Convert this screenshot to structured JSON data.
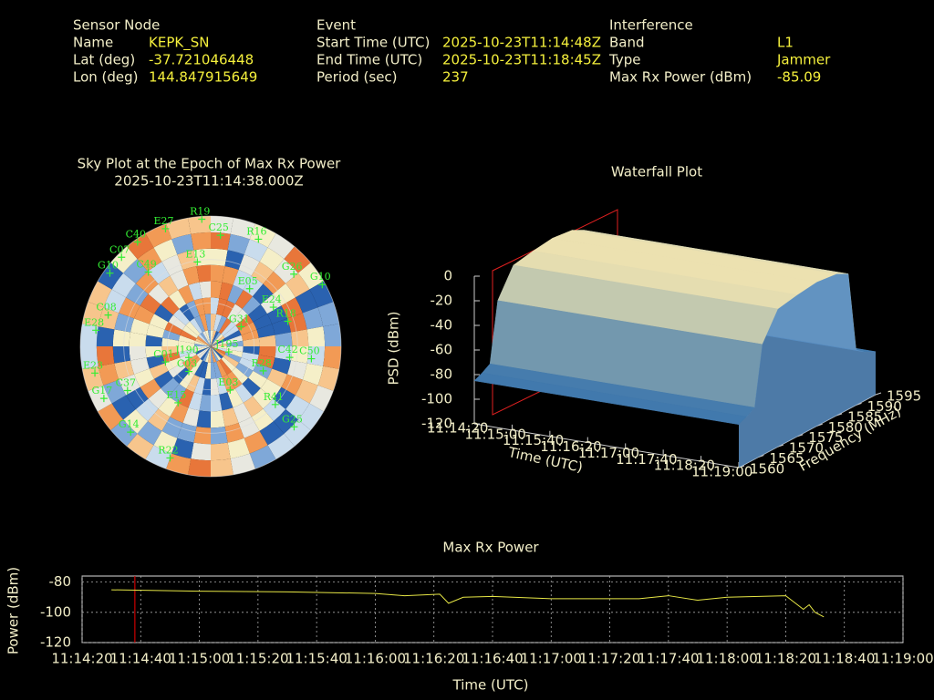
{
  "header": {
    "columns": [
      {
        "title": "Sensor Node",
        "rows": [
          [
            "Name",
            "KEPK_SN"
          ],
          [
            "Lat (deg)",
            "-37.721046448"
          ],
          [
            "Lon (deg)",
            "144.847915649"
          ]
        ]
      },
      {
        "title": "Event",
        "rows": [
          [
            "Start Time (UTC)",
            "2025-10-23T11:14:48Z"
          ],
          [
            "End Time (UTC)",
            "2025-10-23T11:18:45Z"
          ],
          [
            "Period (sec)",
            "237"
          ]
        ]
      },
      {
        "title": "Interference",
        "rows": [
          [
            "Band",
            "L1"
          ],
          [
            "Type",
            "Jammer"
          ],
          [
            "Max Rx Power (dBm)",
            "-85.09"
          ]
        ]
      }
    ]
  },
  "chart_data": [
    {
      "type": "polar",
      "title": "Sky Plot at the Epoch of Max Rx Power",
      "subtitle": "2025-10-23T11:14:38.000Z",
      "labels": [
        "E27",
        "R19",
        "C25",
        "R16",
        "G26",
        "G10",
        "C40",
        "C07",
        "G10",
        "C49",
        "E13",
        "E05",
        "E24",
        "R18",
        "G31",
        "J195",
        "J190",
        "C01",
        "E28",
        "C08",
        "E23",
        "G17",
        "G14",
        "R22",
        "E15",
        "C03",
        "E03",
        "R28",
        "C42",
        "C50",
        "R41",
        "G25",
        "C37"
      ],
      "azimuth": [
        339,
        356,
        5,
        24,
        49,
        61,
        325,
        315,
        306,
        320,
        351,
        34,
        58,
        72,
        57,
        107,
        243,
        251,
        278,
        287,
        257,
        244,
        223,
        200,
        210,
        221,
        156,
        115,
        98,
        97,
        132,
        134,
        242
      ],
      "elevation": [
        3,
        2,
        13,
        9,
        14,
        2,
        2,
        3,
        4,
        23,
        31,
        42,
        39,
        34,
        65,
        77,
        73,
        57,
        10,
        16,
        8,
        8,
        9,
        8,
        45,
        67,
        57,
        50,
        35,
        20,
        30,
        10,
        25
      ],
      "color": "#33ee33"
    },
    {
      "type": "surface",
      "title": "Waterfall Plot",
      "zlabel": "PSD (dBm)",
      "ylabel": "Frequency (MHz)",
      "xlabel": "Time (UTC)",
      "zlim": [
        -120,
        0
      ],
      "zticks": [
        0,
        -20,
        -40,
        -60,
        -80,
        -100,
        -120
      ],
      "ylim": [
        1560,
        1595
      ],
      "yticks": [
        1560,
        1565,
        1570,
        1575,
        1580,
        1585,
        1590,
        1595
      ],
      "xlim": [
        "11:14:20",
        "11:19:00"
      ],
      "xticks": [
        "11:14:20",
        "11:15:00",
        "11:15:40",
        "11:16:20",
        "11:17:00",
        "11:17:40",
        "11:18:20",
        "11:19:00"
      ],
      "frequencies": [
        1560,
        1562,
        1564,
        1566,
        1570,
        1575,
        1580,
        1585,
        1588,
        1590,
        1592,
        1595
      ],
      "values": [
        -85,
        -82,
        -78,
        -30,
        -8,
        -5,
        -3,
        -5,
        -10,
        -75,
        -80,
        -85
      ]
    },
    {
      "type": "line",
      "title": "Max Rx Power",
      "xlabel": "Time (UTC)",
      "ylabel": "Power (dBm)",
      "color": "#e6e645",
      "grid": true,
      "x": [
        "11:14:30",
        "11:15:00",
        "11:15:30",
        "11:16:00",
        "11:16:10",
        "11:16:22",
        "11:16:25",
        "11:16:30",
        "11:16:40",
        "11:17:00",
        "11:17:30",
        "11:17:40",
        "11:17:50",
        "11:18:00",
        "11:18:20",
        "11:18:24",
        "11:18:26",
        "11:18:28",
        "11:18:30",
        "11:18:33"
      ],
      "values": [
        -85.1,
        -86,
        -86.5,
        -87.5,
        -89,
        -88,
        -94,
        -90,
        -89.5,
        -91,
        -91,
        -89,
        -92,
        -90,
        -89,
        -95,
        -98,
        -95,
        -100,
        -103
      ],
      "xlim": [
        "11:14:20",
        "11:19:00"
      ],
      "xticks": [
        "11:14:20",
        "11:14:40",
        "11:15:00",
        "11:15:20",
        "11:15:40",
        "11:16:00",
        "11:16:20",
        "11:16:40",
        "11:17:00",
        "11:17:20",
        "11:17:40",
        "11:18:00",
        "11:18:20",
        "11:18:40",
        "11:19:00"
      ],
      "ylim": [
        -120,
        -76
      ],
      "yticks": [
        -80,
        -100,
        -120
      ],
      "marker_x": "11:14:38",
      "marker_color": "#cc0000"
    }
  ]
}
